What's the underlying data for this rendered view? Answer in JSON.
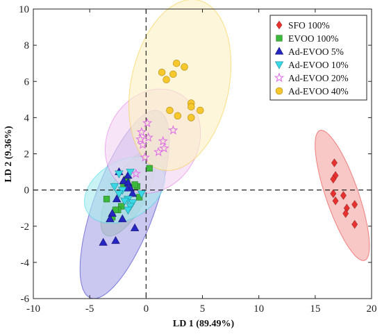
{
  "chart_data": {
    "type": "scatter",
    "xlabel": "LD 1 (89.49%)",
    "ylabel": "LD 2 (9.36%)",
    "xlim": [
      -10,
      20
    ],
    "ylim": [
      -6,
      10
    ],
    "xticks": [
      -10,
      -5,
      0,
      5,
      10,
      15,
      20
    ],
    "yticks": [
      -6,
      -4,
      -2,
      0,
      2,
      4,
      6,
      8,
      10
    ],
    "grid": false,
    "reference_lines": {
      "x": 0,
      "y": 0,
      "style": "dashed"
    },
    "legend_position": "top-right",
    "series": [
      {
        "name": "SFO 100%",
        "marker": "diamond",
        "color": "#e8302e",
        "ellipse_color": "#f4a6a4",
        "points": [
          [
            16.7,
            1.5
          ],
          [
            16.8,
            0.8
          ],
          [
            16.6,
            0.6
          ],
          [
            16.6,
            -0.2
          ],
          [
            16.8,
            -0.6
          ],
          [
            17.5,
            -0.3
          ],
          [
            17.8,
            -1.0
          ],
          [
            17.7,
            -1.3
          ],
          [
            18.5,
            -0.8
          ],
          [
            18.5,
            -1.9
          ]
        ],
        "ellipse": {
          "cx": 17.4,
          "cy": -0.3,
          "a": 3.8,
          "b": 0.9,
          "angle": -71
        }
      },
      {
        "name": "EVOO 100%",
        "marker": "square",
        "color": "#3cb83c",
        "ellipse_color": "#a6dd8f",
        "points": [
          [
            0.3,
            1.2
          ],
          [
            -1.7,
            0.6
          ],
          [
            -2.0,
            0.3
          ],
          [
            -0.8,
            0.2
          ],
          [
            -1.0,
            0.3
          ],
          [
            -3.5,
            -0.5
          ],
          [
            -0.6,
            -0.4
          ],
          [
            -2.2,
            -0.9
          ],
          [
            -2.5,
            -1.1
          ],
          [
            -3.0,
            -1.5
          ],
          [
            -2.7,
            -1.1
          ]
        ],
        "ellipse": {
          "cx": -1.6,
          "cy": -0.2,
          "a": 2.6,
          "b": 1.0,
          "angle": 62
        }
      },
      {
        "name": "Ad-EVOO 5%",
        "marker": "triangle-up",
        "color": "#2525c2",
        "ellipse_color": "#a9a5e6",
        "points": [
          [
            -2.4,
            1.0
          ],
          [
            -1.6,
            0.8
          ],
          [
            -2.0,
            0.5
          ],
          [
            -1.6,
            0.4
          ],
          [
            -1.4,
            0.1
          ],
          [
            -1.7,
            0.1
          ],
          [
            -1.2,
            -0.2
          ],
          [
            -2.6,
            -0.5
          ],
          [
            -3.0,
            -1.3
          ],
          [
            -3.2,
            -1.6
          ],
          [
            -2.1,
            -1.6
          ],
          [
            -1.0,
            -2.1
          ],
          [
            -2.7,
            -2.8
          ],
          [
            -3.8,
            -2.9
          ]
        ],
        "ellipse": {
          "cx": -1.9,
          "cy": -0.8,
          "a": 5.5,
          "b": 1.7,
          "angle": 70
        }
      },
      {
        "name": "Ad-EVOO 10%",
        "marker": "triangle-down",
        "color": "#38d8e6",
        "ellipse_color": "#a8eaee",
        "points": [
          [
            -1.4,
            1.0
          ],
          [
            -2.4,
            0.9
          ],
          [
            -2.8,
            0.2
          ],
          [
            -2.1,
            0.0
          ],
          [
            -2.4,
            -0.2
          ],
          [
            -1.6,
            -0.5
          ],
          [
            -1.9,
            -0.6
          ],
          [
            -1.2,
            -0.7
          ],
          [
            -1.4,
            -0.9
          ],
          [
            -1.6,
            -1.1
          ],
          [
            -0.4,
            -0.2
          ]
        ],
        "ellipse": {
          "cx": -1.9,
          "cy": 0.0,
          "a": 2.4,
          "b": 1.6,
          "angle": 30
        }
      },
      {
        "name": "Ad-EVOO 20%",
        "marker": "star",
        "color": "#e070e8",
        "ellipse_color": "#f2d4f0",
        "points": [
          [
            0.1,
            3.7
          ],
          [
            -0.4,
            3.2
          ],
          [
            0.2,
            2.9
          ],
          [
            -0.5,
            2.8
          ],
          [
            1.5,
            2.7
          ],
          [
            -0.3,
            2.5
          ],
          [
            1.6,
            2.3
          ],
          [
            1.1,
            2.1
          ],
          [
            -0.1,
            1.8
          ],
          [
            2.4,
            3.3
          ],
          [
            -0.9,
            0.9
          ]
        ],
        "ellipse": {
          "cx": 0.6,
          "cy": 2.7,
          "a": 3.0,
          "b": 2.5,
          "angle": 60
        }
      },
      {
        "name": "Ad-EVOO 40%",
        "marker": "circle",
        "color": "#f6c82e",
        "ellipse_color": "#fbf0c3",
        "points": [
          [
            2.7,
            7.0
          ],
          [
            3.4,
            6.8
          ],
          [
            1.4,
            6.5
          ],
          [
            2.4,
            6.4
          ],
          [
            1.8,
            6.1
          ],
          [
            4.0,
            4.8
          ],
          [
            4.0,
            4.6
          ],
          [
            4.8,
            4.4
          ],
          [
            2.1,
            4.4
          ],
          [
            2.8,
            4.1
          ],
          [
            4.0,
            4.0
          ]
        ],
        "ellipse": {
          "cx": 3.0,
          "cy": 5.8,
          "a": 4.8,
          "b": 2.7,
          "angle": 78
        }
      }
    ]
  }
}
